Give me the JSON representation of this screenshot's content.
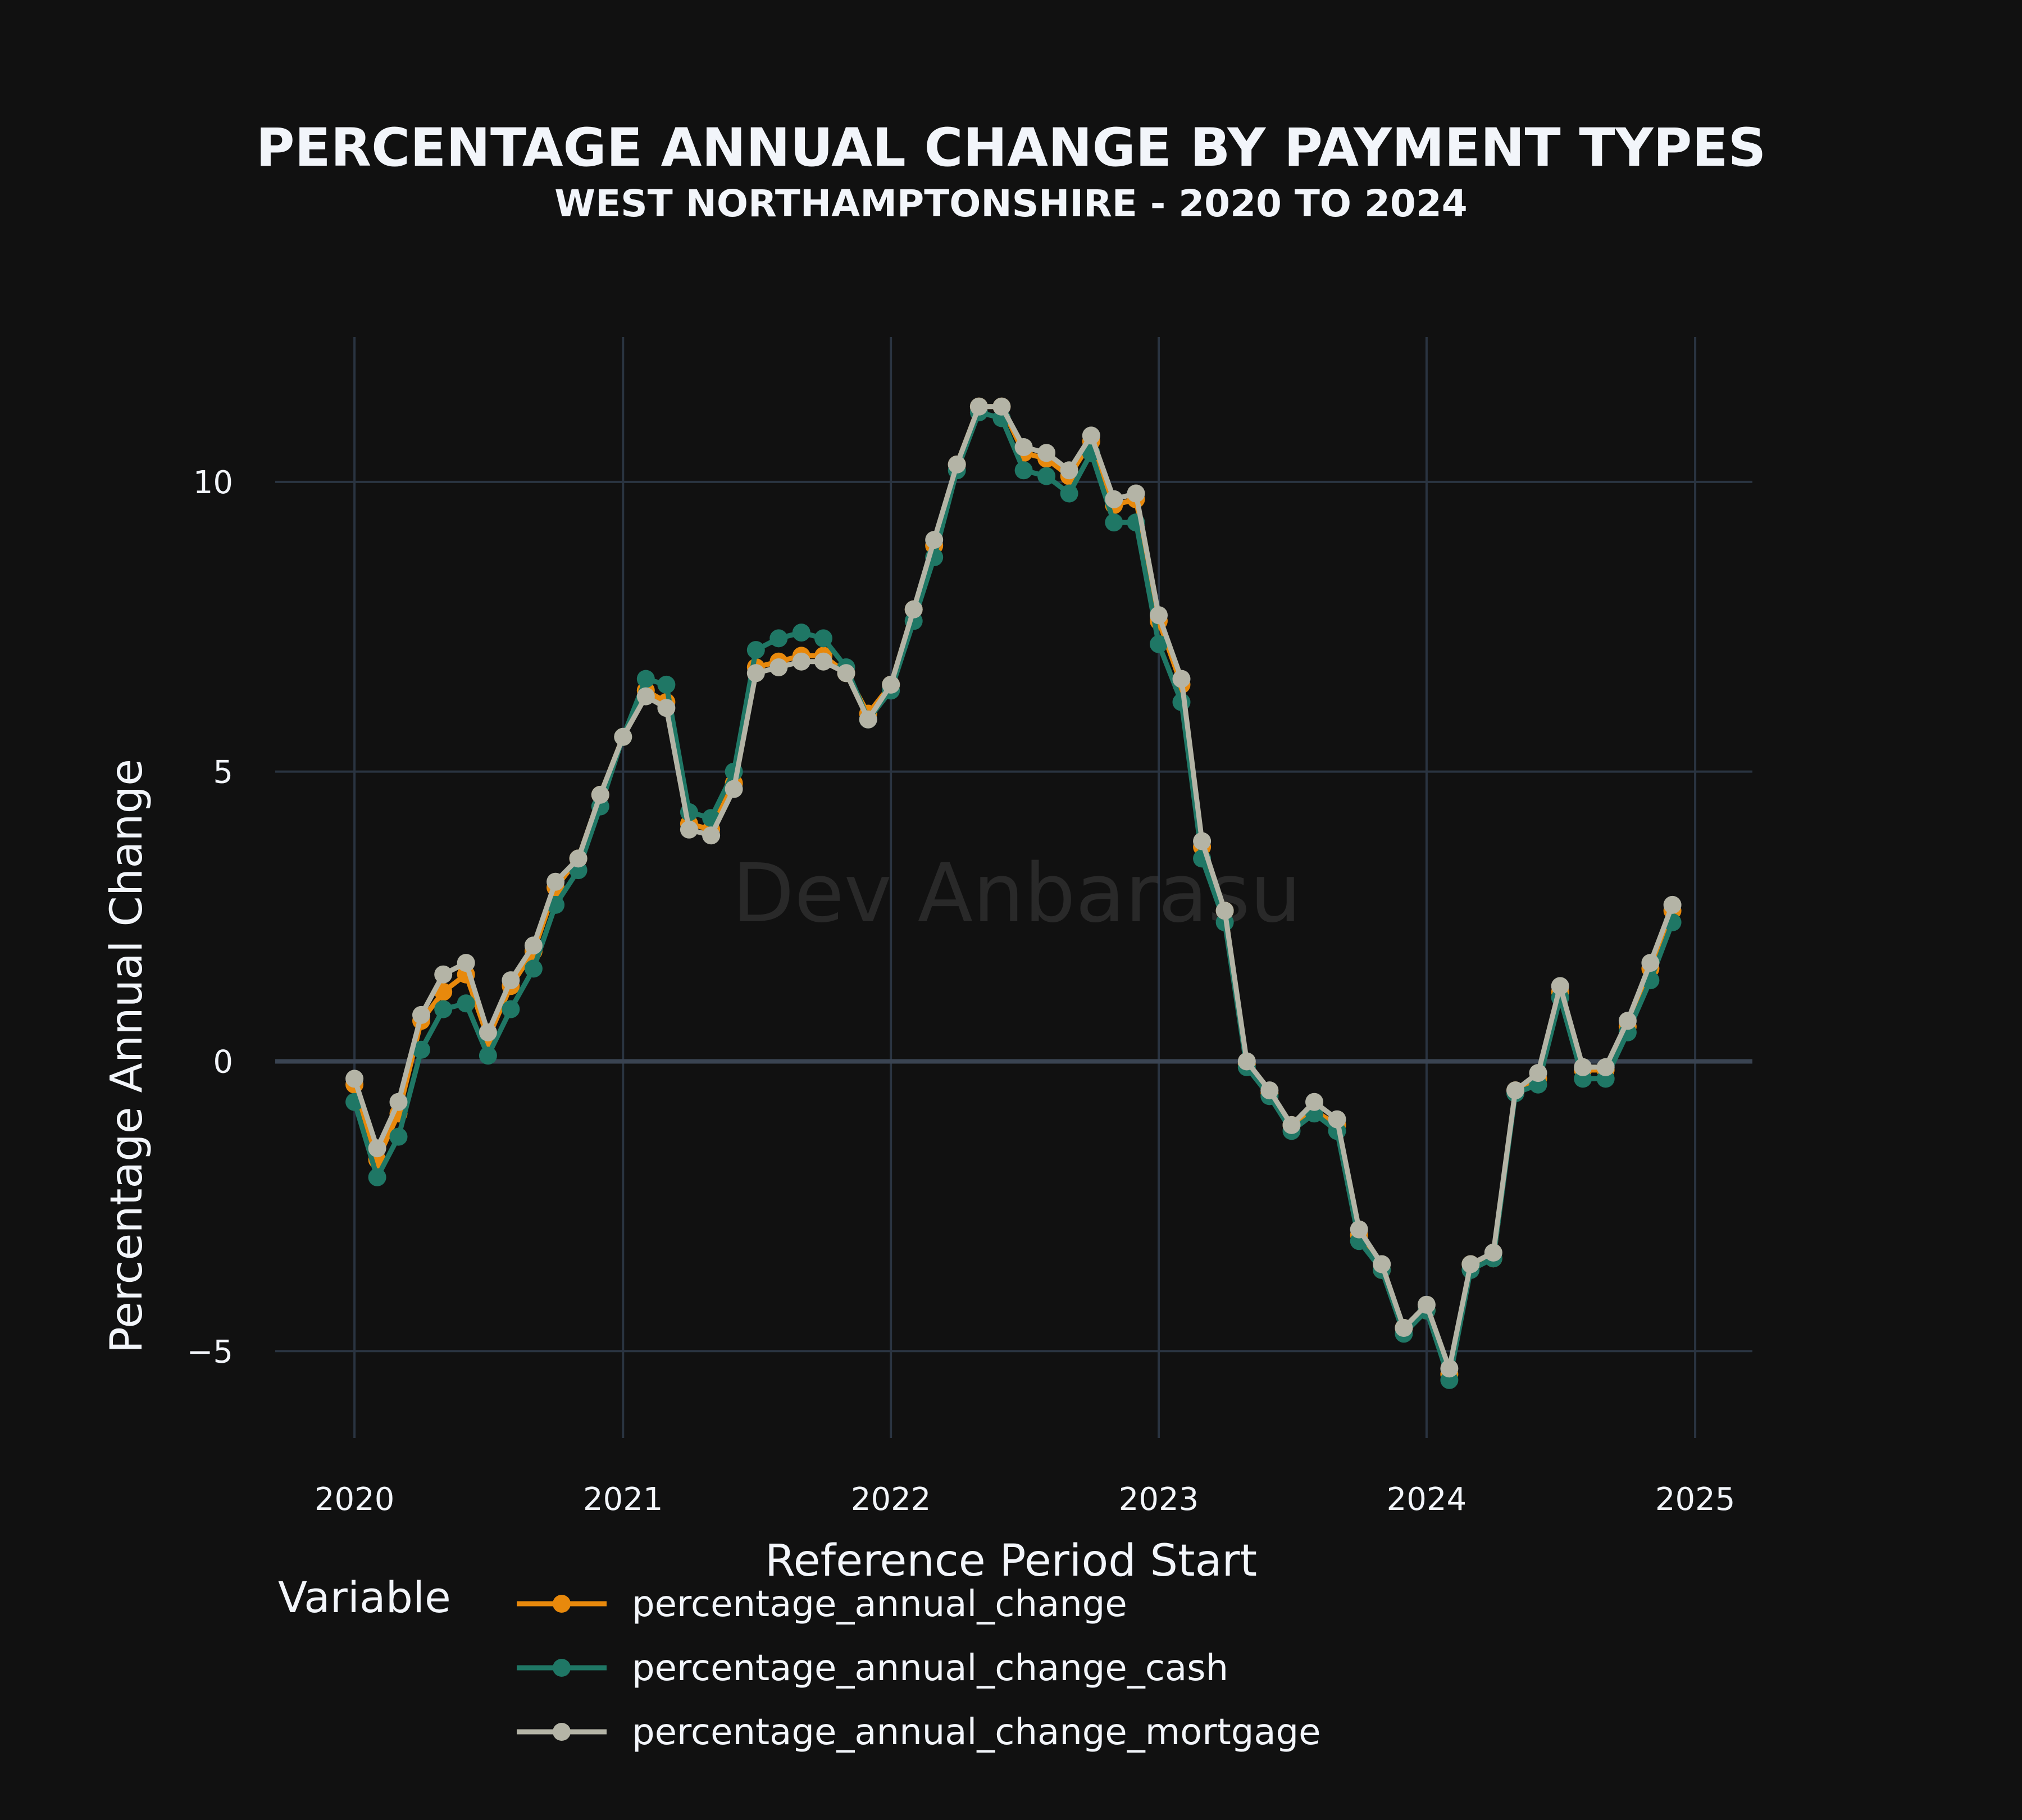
{
  "chart_data": {
    "type": "line",
    "title": "PERCENTAGE ANNUAL CHANGE BY PAYMENT TYPES",
    "subtitle": "WEST NORTHAMPTONSHIRE - 2020 TO 2024",
    "xlabel": "Reference Period Start",
    "ylabel": "Percentage Annual Change",
    "watermark": "Dev Anbarasu",
    "xlim": [
      "2019-09-15",
      "2025-03-20"
    ],
    "ylim": [
      -6.5,
      12.5
    ],
    "x_ticks": [
      "2020",
      "2021",
      "2022",
      "2023",
      "2024",
      "2025"
    ],
    "y_ticks": [
      {
        "value": 10,
        "label": "10"
      },
      {
        "value": 5,
        "label": "5"
      },
      {
        "value": 0,
        "label": "0"
      },
      {
        "value": -5,
        "label": "−5"
      }
    ],
    "grid": true,
    "legend": {
      "title": "Variable",
      "position": "bottom"
    },
    "x": [
      "2020-01-01",
      "2020-02-01",
      "2020-03-01",
      "2020-04-01",
      "2020-05-01",
      "2020-06-01",
      "2020-07-01",
      "2020-08-01",
      "2020-09-01",
      "2020-10-01",
      "2020-11-01",
      "2020-12-01",
      "2021-01-01",
      "2021-02-01",
      "2021-03-01",
      "2021-04-01",
      "2021-05-01",
      "2021-06-01",
      "2021-07-01",
      "2021-08-01",
      "2021-09-01",
      "2021-10-01",
      "2021-11-01",
      "2021-12-01",
      "2022-01-01",
      "2022-02-01",
      "2022-03-01",
      "2022-04-01",
      "2022-05-01",
      "2022-06-01",
      "2022-07-01",
      "2022-08-01",
      "2022-09-01",
      "2022-10-01",
      "2022-11-01",
      "2022-12-01",
      "2023-01-01",
      "2023-02-01",
      "2023-03-01",
      "2023-04-01",
      "2023-05-01",
      "2023-06-01",
      "2023-07-01",
      "2023-08-01",
      "2023-09-01",
      "2023-10-01",
      "2023-11-01",
      "2023-12-01",
      "2024-01-01",
      "2024-02-01",
      "2024-03-01",
      "2024-04-01",
      "2024-05-01",
      "2024-06-01",
      "2024-07-01",
      "2024-08-01",
      "2024-09-01",
      "2024-10-01",
      "2024-11-01",
      "2024-12-01"
    ],
    "series": [
      {
        "name": "percentage_annual_change",
        "color": "#e8890c",
        "values": [
          -0.4,
          -1.7,
          -0.9,
          0.7,
          1.2,
          1.5,
          0.4,
          1.3,
          1.9,
          3.0,
          3.5,
          4.6,
          5.6,
          6.4,
          6.2,
          4.1,
          4.0,
          4.8,
          6.8,
          6.9,
          7.0,
          7.0,
          6.7,
          6.0,
          6.5,
          7.8,
          8.9,
          10.3,
          11.3,
          11.3,
          10.5,
          10.4,
          10.1,
          10.7,
          9.6,
          9.7,
          7.6,
          6.5,
          3.7,
          2.6,
          -0.05,
          -0.55,
          -1.1,
          -0.85,
          -1.1,
          -3.0,
          -3.6,
          -4.6,
          -4.3,
          -5.4,
          -3.5,
          -3.4,
          -0.5,
          -0.3,
          1.2,
          -0.15,
          -0.15,
          0.6,
          1.6,
          2.6
        ]
      },
      {
        "name": "percentage_annual_change_cash",
        "color": "#1f7765",
        "values": [
          -0.7,
          -2.0,
          -1.3,
          0.2,
          0.9,
          1.0,
          0.1,
          0.9,
          1.6,
          2.7,
          3.3,
          4.4,
          5.6,
          6.6,
          6.5,
          4.3,
          4.2,
          5.0,
          7.1,
          7.3,
          7.4,
          7.3,
          6.8,
          5.9,
          6.4,
          7.6,
          8.7,
          10.2,
          11.2,
          11.1,
          10.2,
          10.1,
          9.8,
          10.5,
          9.3,
          9.3,
          7.2,
          6.2,
          3.5,
          2.4,
          -0.1,
          -0.6,
          -1.2,
          -0.9,
          -1.2,
          -3.1,
          -3.6,
          -4.7,
          -4.3,
          -5.5,
          -3.6,
          -3.4,
          -0.55,
          -0.4,
          1.1,
          -0.3,
          -0.3,
          0.5,
          1.4,
          2.4
        ]
      },
      {
        "name": "percentage_annual_change_mortgage",
        "color": "#b4b4a6",
        "values": [
          -0.3,
          -1.5,
          -0.7,
          0.8,
          1.5,
          1.7,
          0.5,
          1.4,
          2.0,
          3.1,
          3.5,
          4.6,
          5.6,
          6.3,
          6.1,
          4.0,
          3.9,
          4.7,
          6.7,
          6.8,
          6.9,
          6.9,
          6.7,
          5.9,
          6.5,
          7.8,
          9.0,
          10.3,
          11.3,
          11.3,
          10.6,
          10.5,
          10.2,
          10.8,
          9.7,
          9.8,
          7.7,
          6.6,
          3.8,
          2.6,
          0.0,
          -0.5,
          -1.1,
          -0.7,
          -1.0,
          -2.9,
          -3.5,
          -4.6,
          -4.2,
          -5.3,
          -3.5,
          -3.3,
          -0.5,
          -0.2,
          1.3,
          -0.1,
          -0.1,
          0.7,
          1.7,
          2.7
        ]
      }
    ]
  }
}
